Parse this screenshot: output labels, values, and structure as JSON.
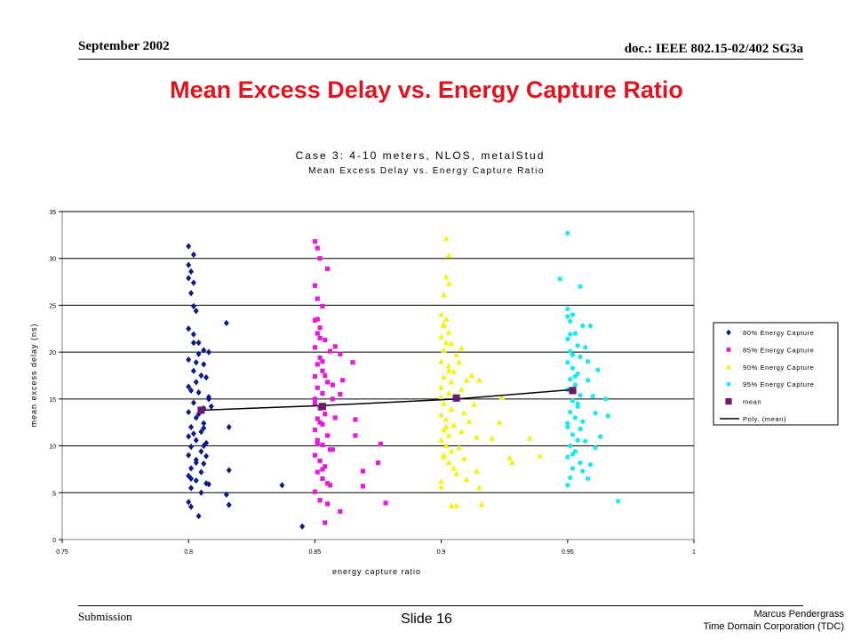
{
  "header": {
    "date": "September 2002",
    "doc": "doc.: IEEE 802.15-02/402 SG3a"
  },
  "slide_title": "Mean Excess Delay vs. Energy Capture Ratio",
  "footer": {
    "submission": "Submission",
    "slide": "Slide 16",
    "author": "Marcus Pendergrass",
    "org": "Time Domain Corporation (TDC)"
  },
  "chart_data": {
    "type": "scatter",
    "title": "Case 3:  4-10 meters, NLOS, metalStud",
    "subtitle": "Mean Excess Delay vs. Energy Capture Ratio",
    "xlabel": "energy capture ratio",
    "ylabel": "mean excess delay (ns)",
    "xlim": [
      0.75,
      1
    ],
    "ylim": [
      0,
      35
    ],
    "xticks": [
      "0.75",
      "0.8",
      "0.85",
      "0.9",
      "0.95",
      "1"
    ],
    "yticks": [
      "0",
      "5",
      "10",
      "15",
      "20",
      "25",
      "30",
      "35"
    ],
    "grid": "horizontal",
    "legend": "right",
    "series": [
      {
        "name": "80% Energy Capture",
        "marker": "diamond",
        "color": "#0a1a8a",
        "points": [
          [
            0.8,
            31.3
          ],
          [
            0.802,
            30.4
          ],
          [
            0.8,
            29.3
          ],
          [
            0.801,
            28.6
          ],
          [
            0.8,
            27.9
          ],
          [
            0.802,
            27.4
          ],
          [
            0.801,
            26.3
          ],
          [
            0.802,
            24.9
          ],
          [
            0.803,
            24.4
          ],
          [
            0.8,
            22.5
          ],
          [
            0.802,
            21.9
          ],
          [
            0.804,
            21.0
          ],
          [
            0.806,
            20.2
          ],
          [
            0.808,
            20.0
          ],
          [
            0.804,
            19.8
          ],
          [
            0.8,
            19.2
          ],
          [
            0.806,
            18.7
          ],
          [
            0.802,
            18.0
          ],
          [
            0.807,
            17.3
          ],
          [
            0.803,
            16.8
          ],
          [
            0.8,
            16.3
          ],
          [
            0.804,
            15.7
          ],
          [
            0.808,
            15.2
          ],
          [
            0.802,
            14.6
          ],
          [
            0.806,
            14.0
          ],
          [
            0.8,
            13.6
          ],
          [
            0.803,
            13.0
          ],
          [
            0.806,
            12.4
          ],
          [
            0.801,
            12.0
          ],
          [
            0.805,
            11.5
          ],
          [
            0.8,
            11.0
          ],
          [
            0.803,
            10.6
          ],
          [
            0.807,
            10.3
          ],
          [
            0.801,
            9.9
          ],
          [
            0.805,
            9.4
          ],
          [
            0.8,
            9.0
          ],
          [
            0.803,
            8.5
          ],
          [
            0.806,
            8.1
          ],
          [
            0.801,
            7.6
          ],
          [
            0.805,
            7.2
          ],
          [
            0.8,
            6.8
          ],
          [
            0.803,
            6.3
          ],
          [
            0.807,
            6.0
          ],
          [
            0.801,
            5.5
          ],
          [
            0.805,
            5.0
          ],
          [
            0.8,
            4.0
          ],
          [
            0.801,
            3.5
          ],
          [
            0.804,
            2.5
          ],
          [
            0.815,
            23.1
          ],
          [
            0.816,
            12.0
          ],
          [
            0.816,
            7.4
          ],
          [
            0.815,
            4.8
          ],
          [
            0.816,
            3.7
          ],
          [
            0.808,
            15.0
          ],
          [
            0.809,
            14.2
          ],
          [
            0.806,
            11.9
          ],
          [
            0.807,
            8.9
          ],
          [
            0.808,
            5.9
          ],
          [
            0.837,
            5.8
          ],
          [
            0.845,
            1.4
          ],
          [
            0.802,
            21.0
          ],
          [
            0.803,
            18.9
          ],
          [
            0.805,
            17.5
          ],
          [
            0.801,
            15.9
          ],
          [
            0.804,
            13.4
          ],
          [
            0.802,
            11.3
          ],
          [
            0.806,
            10.0
          ],
          [
            0.803,
            8.2
          ],
          [
            0.801,
            6.5
          ]
        ]
      },
      {
        "name": "85% Energy Capture",
        "marker": "square",
        "color": "#e01ed8",
        "points": [
          [
            0.85,
            31.8
          ],
          [
            0.851,
            31.1
          ],
          [
            0.852,
            30.0
          ],
          [
            0.855,
            28.9
          ],
          [
            0.85,
            27.1
          ],
          [
            0.851,
            25.7
          ],
          [
            0.853,
            24.9
          ],
          [
            0.85,
            23.4
          ],
          [
            0.852,
            22.6
          ],
          [
            0.851,
            22.0
          ],
          [
            0.854,
            21.3
          ],
          [
            0.85,
            20.5
          ],
          [
            0.856,
            20.1
          ],
          [
            0.852,
            19.4
          ],
          [
            0.851,
            18.7
          ],
          [
            0.853,
            18.0
          ],
          [
            0.85,
            17.4
          ],
          [
            0.855,
            16.8
          ],
          [
            0.851,
            16.2
          ],
          [
            0.853,
            15.6
          ],
          [
            0.857,
            15.0
          ],
          [
            0.85,
            14.5
          ],
          [
            0.852,
            14.0
          ],
          [
            0.854,
            13.4
          ],
          [
            0.851,
            12.9
          ],
          [
            0.853,
            12.3
          ],
          [
            0.85,
            11.7
          ],
          [
            0.855,
            11.1
          ],
          [
            0.851,
            10.6
          ],
          [
            0.853,
            10.1
          ],
          [
            0.856,
            9.6
          ],
          [
            0.85,
            9.0
          ],
          [
            0.852,
            8.4
          ],
          [
            0.854,
            7.8
          ],
          [
            0.851,
            7.2
          ],
          [
            0.853,
            6.5
          ],
          [
            0.855,
            6.0
          ],
          [
            0.85,
            5.1
          ],
          [
            0.852,
            4.2
          ],
          [
            0.855,
            3.8
          ],
          [
            0.854,
            1.8
          ],
          [
            0.86,
            3.0
          ],
          [
            0.86,
            15.5
          ],
          [
            0.861,
            17.0
          ],
          [
            0.86,
            19.8
          ],
          [
            0.865,
            18.9
          ],
          [
            0.866,
            12.8
          ],
          [
            0.866,
            11.1
          ],
          [
            0.869,
            7.3
          ],
          [
            0.869,
            5.7
          ],
          [
            0.876,
            10.2
          ],
          [
            0.875,
            8.2
          ],
          [
            0.878,
            3.9
          ],
          [
            0.858,
            20.6
          ],
          [
            0.857,
            16.5
          ],
          [
            0.858,
            13.0
          ],
          [
            0.857,
            9.6
          ],
          [
            0.856,
            5.8
          ],
          [
            0.851,
            23.5
          ],
          [
            0.852,
            21.5
          ],
          [
            0.853,
            19.0
          ],
          [
            0.854,
            17.5
          ],
          [
            0.85,
            15.0
          ],
          [
            0.852,
            12.5
          ],
          [
            0.851,
            10.2
          ],
          [
            0.853,
            7.5
          ]
        ]
      },
      {
        "name": "90% Energy Capture",
        "marker": "triangle",
        "color": "#f4f40a",
        "points": [
          [
            0.902,
            32.1
          ],
          [
            0.903,
            30.3
          ],
          [
            0.902,
            28.0
          ],
          [
            0.903,
            27.3
          ],
          [
            0.901,
            26.1
          ],
          [
            0.9,
            24.0
          ],
          [
            0.902,
            23.5
          ],
          [
            0.901,
            22.8
          ],
          [
            0.903,
            22.1
          ],
          [
            0.9,
            21.6
          ],
          [
            0.904,
            20.9
          ],
          [
            0.901,
            20.2
          ],
          [
            0.906,
            19.7
          ],
          [
            0.9,
            19.0
          ],
          [
            0.903,
            18.5
          ],
          [
            0.905,
            17.9
          ],
          [
            0.901,
            17.3
          ],
          [
            0.904,
            16.8
          ],
          [
            0.9,
            16.2
          ],
          [
            0.903,
            15.6
          ],
          [
            0.906,
            15.0
          ],
          [
            0.901,
            14.5
          ],
          [
            0.904,
            13.9
          ],
          [
            0.9,
            13.3
          ],
          [
            0.902,
            12.8
          ],
          [
            0.905,
            12.2
          ],
          [
            0.901,
            11.7
          ],
          [
            0.903,
            11.1
          ],
          [
            0.9,
            10.6
          ],
          [
            0.902,
            10.0
          ],
          [
            0.904,
            9.4
          ],
          [
            0.901,
            8.8
          ],
          [
            0.903,
            8.2
          ],
          [
            0.905,
            7.6
          ],
          [
            0.9,
            6.2
          ],
          [
            0.9,
            5.6
          ],
          [
            0.904,
            3.6
          ],
          [
            0.906,
            3.6
          ],
          [
            0.91,
            17.0
          ],
          [
            0.912,
            17.5
          ],
          [
            0.913,
            14.4
          ],
          [
            0.911,
            12.6
          ],
          [
            0.914,
            10.9
          ],
          [
            0.909,
            8.6
          ],
          [
            0.91,
            6.4
          ],
          [
            0.915,
            5.5
          ],
          [
            0.914,
            7.3
          ],
          [
            0.916,
            3.7
          ],
          [
            0.915,
            17.0
          ],
          [
            0.92,
            10.8
          ],
          [
            0.923,
            12.5
          ],
          [
            0.924,
            15.2
          ],
          [
            0.927,
            8.7
          ],
          [
            0.928,
            8.2
          ],
          [
            0.935,
            10.8
          ],
          [
            0.939,
            8.9
          ],
          [
            0.908,
            20.4
          ],
          [
            0.907,
            18.9
          ],
          [
            0.908,
            16.0
          ],
          [
            0.909,
            13.5
          ],
          [
            0.908,
            11.5
          ],
          [
            0.907,
            9.8
          ],
          [
            0.906,
            7.0
          ],
          [
            0.901,
            23.0
          ],
          [
            0.902,
            21.0
          ],
          [
            0.903,
            18.0
          ],
          [
            0.9,
            15.2
          ],
          [
            0.902,
            12.0
          ],
          [
            0.901,
            9.0
          ]
        ]
      },
      {
        "name": "95% Energy Capture",
        "marker": "circle",
        "color": "#1ee8f0",
        "points": [
          [
            0.95,
            32.7
          ],
          [
            0.947,
            27.8
          ],
          [
            0.955,
            27.0
          ],
          [
            0.95,
            24.6
          ],
          [
            0.952,
            24.0
          ],
          [
            0.951,
            23.3
          ],
          [
            0.956,
            22.8
          ],
          [
            0.953,
            22.0
          ],
          [
            0.95,
            21.4
          ],
          [
            0.954,
            20.7
          ],
          [
            0.951,
            20.1
          ],
          [
            0.955,
            19.5
          ],
          [
            0.95,
            18.9
          ],
          [
            0.952,
            18.3
          ],
          [
            0.954,
            17.7
          ],
          [
            0.951,
            17.1
          ],
          [
            0.953,
            16.5
          ],
          [
            0.95,
            16.0
          ],
          [
            0.955,
            15.4
          ],
          [
            0.952,
            14.8
          ],
          [
            0.954,
            14.2
          ],
          [
            0.951,
            13.6
          ],
          [
            0.953,
            13.0
          ],
          [
            0.95,
            12.4
          ],
          [
            0.955,
            11.8
          ],
          [
            0.952,
            11.2
          ],
          [
            0.954,
            10.6
          ],
          [
            0.951,
            10.0
          ],
          [
            0.953,
            9.4
          ],
          [
            0.95,
            8.8
          ],
          [
            0.955,
            8.2
          ],
          [
            0.952,
            7.6
          ],
          [
            0.951,
            6.6
          ],
          [
            0.95,
            5.8
          ],
          [
            0.959,
            22.8
          ],
          [
            0.958,
            19.0
          ],
          [
            0.96,
            15.3
          ],
          [
            0.961,
            13.5
          ],
          [
            0.962,
            18.1
          ],
          [
            0.965,
            15.0
          ],
          [
            0.966,
            13.2
          ],
          [
            0.963,
            11.0
          ],
          [
            0.961,
            9.8
          ],
          [
            0.959,
            8.0
          ],
          [
            0.958,
            6.5
          ],
          [
            0.97,
            4.1
          ],
          [
            0.957,
            20.5
          ],
          [
            0.958,
            17.0
          ],
          [
            0.956,
            12.6
          ],
          [
            0.957,
            10.5
          ],
          [
            0.956,
            7.3
          ],
          [
            0.95,
            23.8
          ],
          [
            0.951,
            21.9
          ],
          [
            0.952,
            19.7
          ],
          [
            0.953,
            17.4
          ],
          [
            0.954,
            14.5
          ],
          [
            0.95,
            12.0
          ],
          [
            0.952,
            9.1
          ]
        ]
      }
    ],
    "mean": {
      "name": "mean",
      "color": "#6a1a6e",
      "points": [
        [
          0.805,
          13.8
        ],
        [
          0.853,
          14.2
        ],
        [
          0.906,
          15.1
        ],
        [
          0.952,
          15.9
        ]
      ]
    },
    "fit": {
      "name": "Poly. (mean)",
      "color": "#000000",
      "points": [
        [
          0.805,
          13.8
        ],
        [
          0.853,
          14.3
        ],
        [
          0.906,
          15.0
        ],
        [
          0.952,
          16.0
        ]
      ]
    }
  }
}
